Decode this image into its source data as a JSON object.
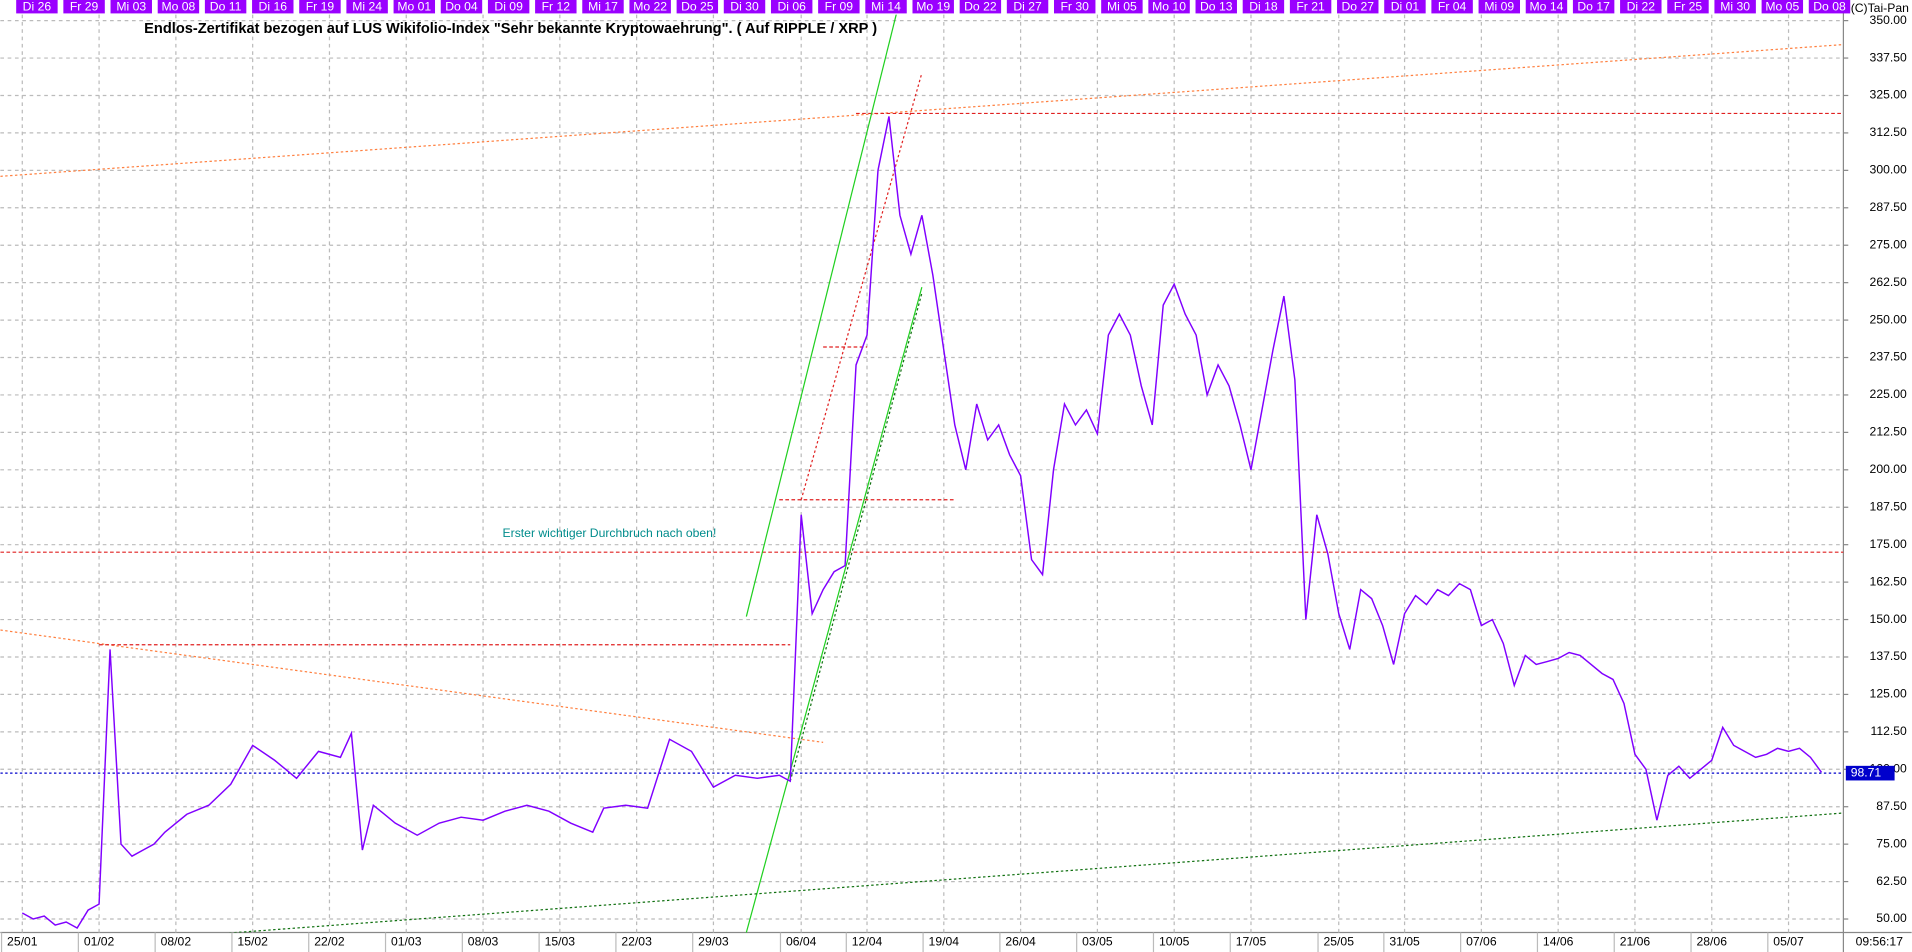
{
  "chart_data": {
    "type": "line",
    "title": "Endlos-Zertifikat bezogen auf LUS Wikifolio-Index \"Sehr bekannte Kryptowaehrung\". ( Auf RIPPLE / XRP )",
    "annotation": "Erster wichtiger Durchbruch nach oben!",
    "copyright": "(C)Tai-Pan",
    "time": "09:56:17",
    "color": "#8000ff",
    "grid": true,
    "x": [
      "25/01",
      "26/01",
      "27/01",
      "28/01",
      "29/01",
      "30/01",
      "31/01",
      "01/02",
      "02/02",
      "03/02",
      "04/02",
      "05/02",
      "06/02",
      "07/02",
      "09/02",
      "11/02",
      "13/02",
      "15/02",
      "17/02",
      "19/02",
      "21/02",
      "23/02",
      "24/02",
      "25/02",
      "26/02",
      "28/02",
      "02/03",
      "04/03",
      "06/03",
      "08/03",
      "10/03",
      "12/03",
      "14/03",
      "16/03",
      "18/03",
      "19/03",
      "21/03",
      "23/03",
      "25/03",
      "27/03",
      "29/03",
      "31/03",
      "02/04",
      "04/04",
      "05/04",
      "06/04",
      "07/04",
      "08/04",
      "09/04",
      "10/04",
      "11/04",
      "12/04",
      "13/04",
      "14/04",
      "15/04",
      "16/04",
      "17/04",
      "18/04",
      "19/04",
      "20/04",
      "21/04",
      "22/04",
      "23/04",
      "24/04",
      "25/04",
      "26/04",
      "27/04",
      "28/04",
      "29/04",
      "30/04",
      "01/05",
      "02/05",
      "03/05",
      "04/05",
      "05/05",
      "06/05",
      "07/05",
      "08/05",
      "09/05",
      "10/05",
      "11/05",
      "12/05",
      "13/05",
      "14/05",
      "15/05",
      "16/05",
      "17/05",
      "18/05",
      "19/05",
      "20/05",
      "21/05",
      "22/05",
      "23/05",
      "24/05",
      "25/05",
      "26/05",
      "27/05",
      "28/05",
      "29/05",
      "30/05",
      "31/05",
      "01/06",
      "02/06",
      "03/06",
      "04/06",
      "05/06",
      "06/06",
      "07/06",
      "08/06",
      "09/06",
      "10/06",
      "11/06",
      "12/06",
      "13/06",
      "14/06",
      "15/06",
      "16/06",
      "17/06",
      "18/06",
      "19/06",
      "20/06",
      "21/06",
      "22/06",
      "23/06",
      "24/06",
      "25/06",
      "26/06",
      "27/06",
      "28/06",
      "29/06",
      "30/06",
      "01/07",
      "02/07",
      "03/07",
      "04/07",
      "05/07",
      "06/07",
      "07/07",
      "08/07"
    ],
    "values": [
      52,
      50,
      51,
      48,
      49,
      47,
      53,
      55,
      140,
      75,
      71,
      73,
      75,
      79,
      85,
      88,
      95,
      108,
      103,
      97,
      106,
      104,
      112,
      73,
      88,
      82,
      78,
      82,
      84,
      83,
      86,
      88,
      86,
      82,
      79,
      87,
      88,
      87,
      110,
      106,
      94,
      98,
      97,
      98,
      96,
      185,
      152,
      160,
      166,
      168,
      235,
      245,
      300,
      318,
      285,
      272,
      285,
      265,
      240,
      215,
      200,
      222,
      210,
      215,
      205,
      198,
      170,
      165,
      200,
      222,
      215,
      220,
      212,
      245,
      252,
      245,
      228,
      215,
      255,
      262,
      252,
      245,
      225,
      235,
      228,
      215,
      200,
      220,
      240,
      258,
      230,
      150,
      185,
      172,
      152,
      140,
      160,
      157,
      148,
      135,
      152,
      158,
      155,
      160,
      158,
      162,
      160,
      148,
      150,
      142,
      128,
      138,
      135,
      136,
      137,
      139,
      138,
      135,
      132,
      130,
      122,
      105,
      100,
      83,
      98,
      101,
      97,
      100,
      103,
      114,
      108,
      106,
      104,
      105,
      107,
      106,
      107,
      104,
      99
    ],
    "last_price": 98.71,
    "xlim": [
      "23/01",
      "10/07"
    ],
    "xticks": [
      "25/01",
      "01/02",
      "08/02",
      "15/02",
      "22/02",
      "01/03",
      "08/03",
      "15/03",
      "22/03",
      "29/03",
      "06/04",
      "12/04",
      "19/04",
      "26/04",
      "03/05",
      "10/05",
      "17/05",
      "25/05",
      "31/05",
      "07/06",
      "14/06",
      "21/06",
      "28/06",
      "05/07"
    ],
    "top_labels": [
      "Di 26",
      "Fr 29",
      "Mi 03",
      "Mo 08",
      "Do 11",
      "Di 16",
      "Fr 19",
      "Mi 24",
      "Mo 01",
      "Do 04",
      "Di 09",
      "Fr 12",
      "Mi 17",
      "Mo 22",
      "Do 25",
      "Di 30",
      "Di 06",
      "Fr 09",
      "Mi 14",
      "Mo 19",
      "Do 22",
      "Di 27",
      "Fr 30",
      "Mi 05",
      "Mo 10",
      "Do 13",
      "Di 18",
      "Fr 21",
      "Do 27",
      "Di 01",
      "Fr 04",
      "Mi 09",
      "Mo 14",
      "Do 17",
      "Di 22",
      "Fr 25",
      "Mi 30",
      "Mo 05",
      "Do 08"
    ],
    "ylim": [
      45.5,
      352
    ],
    "yticks": [
      {
        "value": 50,
        "label": "50.00"
      },
      {
        "value": 62.5,
        "label": "62.50"
      },
      {
        "value": 75,
        "label": "75.00"
      },
      {
        "value": 87.5,
        "label": "87.50"
      },
      {
        "value": 100,
        "label": "100.00"
      },
      {
        "value": 112.5,
        "label": "112.50"
      },
      {
        "value": 125,
        "label": "125.00"
      },
      {
        "value": 137.5,
        "label": "137.50"
      },
      {
        "value": 150,
        "label": "150.00"
      },
      {
        "value": 162.5,
        "label": "162.50"
      },
      {
        "value": 175,
        "label": "175.00"
      },
      {
        "value": 187.5,
        "label": "187.50"
      },
      {
        "value": 200,
        "label": "200.00"
      },
      {
        "value": 212.5,
        "label": "212.50"
      },
      {
        "value": 225,
        "label": "225.00"
      },
      {
        "value": 237.5,
        "label": "237.50"
      },
      {
        "value": 250,
        "label": "250.00"
      },
      {
        "value": 262.5,
        "label": "262.50"
      },
      {
        "value": 275,
        "label": "275.00"
      },
      {
        "value": 287.5,
        "label": "287.50"
      },
      {
        "value": 300,
        "label": "300.00"
      },
      {
        "value": 312.5,
        "label": "312.50"
      },
      {
        "value": 325,
        "label": "325.00"
      },
      {
        "value": 337.5,
        "label": "337.50"
      },
      {
        "value": 350,
        "label": "350.00"
      }
    ],
    "reference_lines": [
      {
        "from": [
          "23/01",
          298
        ],
        "to": [
          "10/07",
          342
        ],
        "color": "#ff8040",
        "style": "dotted"
      },
      {
        "from": [
          "23/01",
          146.5
        ],
        "to": [
          "08/04",
          109
        ],
        "color": "#ff8040",
        "style": "dotted"
      },
      {
        "from": [
          "01/02",
          141.6
        ],
        "to": [
          "05/04",
          141.6
        ],
        "color": "#e02020",
        "style": "dashed"
      },
      {
        "from": [
          "23/01",
          172.5
        ],
        "to": [
          "10/07",
          172.5
        ],
        "color": "#e02020",
        "style": "dashed"
      },
      {
        "from": [
          "11/04",
          319
        ],
        "to": [
          "10/07",
          319
        ],
        "color": "#e02020",
        "style": "dashed"
      },
      {
        "from": [
          "04/04",
          190
        ],
        "to": [
          "20/04",
          190
        ],
        "color": "#e02020",
        "style": "dashed"
      },
      {
        "from": [
          "08/04",
          241
        ],
        "to": [
          "12/04",
          241
        ],
        "color": "#e02020",
        "style": "dashed"
      },
      {
        "from": [
          "06/04",
          190
        ],
        "to": [
          "17/04",
          332.5
        ],
        "color": "#e02020",
        "style": "dotted"
      },
      {
        "from": [
          "01/04",
          151
        ],
        "to": [
          "15/04",
          357
        ],
        "color": "#20d020",
        "style": "solid"
      },
      {
        "from": [
          "01/04",
          45.5
        ],
        "to": [
          "17/04",
          261
        ],
        "color": "#20d020",
        "style": "solid"
      },
      {
        "from": [
          "05/04",
          96
        ],
        "to": [
          "17/04",
          259
        ],
        "color": "#107010",
        "style": "dotted"
      },
      {
        "from": [
          "08/02",
          44
        ],
        "to": [
          "10/07",
          85.4
        ],
        "color": "#107010",
        "style": "dotted"
      }
    ]
  }
}
